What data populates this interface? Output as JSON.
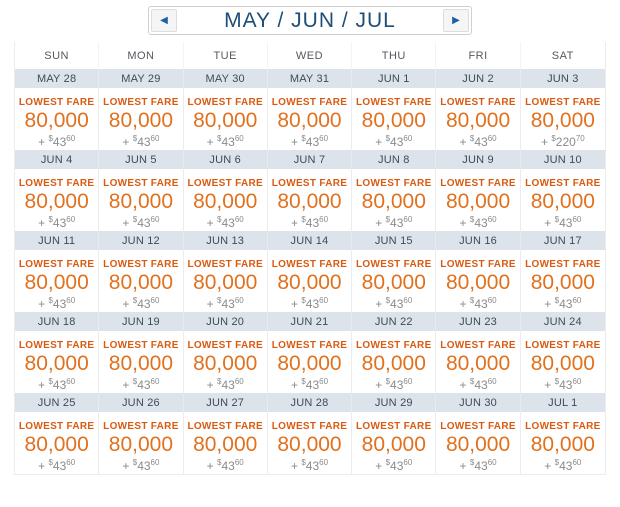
{
  "nav": {
    "title": "MAY / JUN / JUL",
    "prev_icon": "◀",
    "next_icon": "▶"
  },
  "day_headers": [
    "SUN",
    "MON",
    "TUE",
    "WED",
    "THU",
    "FRI",
    "SAT"
  ],
  "fare_label": "LOWEST FARE",
  "plus_sign": "+",
  "dollar_sign": "$",
  "weeks": [
    {
      "dates": [
        "MAY 28",
        "MAY 29",
        "MAY 30",
        "MAY 31",
        "JUN 1",
        "JUN 2",
        "JUN 3"
      ],
      "fares": [
        {
          "miles": "80,000",
          "tax_main": "43",
          "tax_sup": "60"
        },
        {
          "miles": "80,000",
          "tax_main": "43",
          "tax_sup": "60"
        },
        {
          "miles": "80,000",
          "tax_main": "43",
          "tax_sup": "60"
        },
        {
          "miles": "80,000",
          "tax_main": "43",
          "tax_sup": "60"
        },
        {
          "miles": "80,000",
          "tax_main": "43",
          "tax_sup": "60"
        },
        {
          "miles": "80,000",
          "tax_main": "43",
          "tax_sup": "60"
        },
        {
          "miles": "80,000",
          "tax_main": "220",
          "tax_sup": "70"
        }
      ]
    },
    {
      "dates": [
        "JUN 4",
        "JUN 5",
        "JUN 6",
        "JUN 7",
        "JUN 8",
        "JUN 9",
        "JUN 10"
      ],
      "fares": [
        {
          "miles": "80,000",
          "tax_main": "43",
          "tax_sup": "60"
        },
        {
          "miles": "80,000",
          "tax_main": "43",
          "tax_sup": "60"
        },
        {
          "miles": "80,000",
          "tax_main": "43",
          "tax_sup": "60"
        },
        {
          "miles": "80,000",
          "tax_main": "43",
          "tax_sup": "60"
        },
        {
          "miles": "80,000",
          "tax_main": "43",
          "tax_sup": "60"
        },
        {
          "miles": "80,000",
          "tax_main": "43",
          "tax_sup": "60"
        },
        {
          "miles": "80,000",
          "tax_main": "43",
          "tax_sup": "60"
        }
      ]
    },
    {
      "dates": [
        "JUN 11",
        "JUN 12",
        "JUN 13",
        "JUN 14",
        "JUN 15",
        "JUN 16",
        "JUN 17"
      ],
      "fares": [
        {
          "miles": "80,000",
          "tax_main": "43",
          "tax_sup": "60"
        },
        {
          "miles": "80,000",
          "tax_main": "43",
          "tax_sup": "60"
        },
        {
          "miles": "80,000",
          "tax_main": "43",
          "tax_sup": "60"
        },
        {
          "miles": "80,000",
          "tax_main": "43",
          "tax_sup": "60"
        },
        {
          "miles": "80,000",
          "tax_main": "43",
          "tax_sup": "60"
        },
        {
          "miles": "80,000",
          "tax_main": "43",
          "tax_sup": "60"
        },
        {
          "miles": "80,000",
          "tax_main": "43",
          "tax_sup": "60"
        }
      ]
    },
    {
      "dates": [
        "JUN 18",
        "JUN 19",
        "JUN 20",
        "JUN 21",
        "JUN 22",
        "JUN 23",
        "JUN 24"
      ],
      "fares": [
        {
          "miles": "80,000",
          "tax_main": "43",
          "tax_sup": "60"
        },
        {
          "miles": "80,000",
          "tax_main": "43",
          "tax_sup": "60"
        },
        {
          "miles": "80,000",
          "tax_main": "43",
          "tax_sup": "60"
        },
        {
          "miles": "80,000",
          "tax_main": "43",
          "tax_sup": "60"
        },
        {
          "miles": "80,000",
          "tax_main": "43",
          "tax_sup": "60"
        },
        {
          "miles": "80,000",
          "tax_main": "43",
          "tax_sup": "60"
        },
        {
          "miles": "80,000",
          "tax_main": "43",
          "tax_sup": "60"
        }
      ]
    },
    {
      "dates": [
        "JUN 25",
        "JUN 26",
        "JUN 27",
        "JUN 28",
        "JUN 29",
        "JUN 30",
        "JUL 1"
      ],
      "fares": [
        {
          "miles": "80,000",
          "tax_main": "43",
          "tax_sup": "60"
        },
        {
          "miles": "80,000",
          "tax_main": "43",
          "tax_sup": "60"
        },
        {
          "miles": "80,000",
          "tax_main": "43",
          "tax_sup": "60"
        },
        {
          "miles": "80,000",
          "tax_main": "43",
          "tax_sup": "60"
        },
        {
          "miles": "80,000",
          "tax_main": "43",
          "tax_sup": "60"
        },
        {
          "miles": "80,000",
          "tax_main": "43",
          "tax_sup": "60"
        },
        {
          "miles": "80,000",
          "tax_main": "43",
          "tax_sup": "60"
        }
      ]
    }
  ],
  "colors": {
    "navy_title": "#1d4e79",
    "arrow_blue": "#1c5fa8",
    "fare_label_orange": "#d95b12",
    "miles_orange": "#e2711e",
    "taxes_gray": "#8b8b8b",
    "date_bar_bg": "#dce3eb"
  }
}
